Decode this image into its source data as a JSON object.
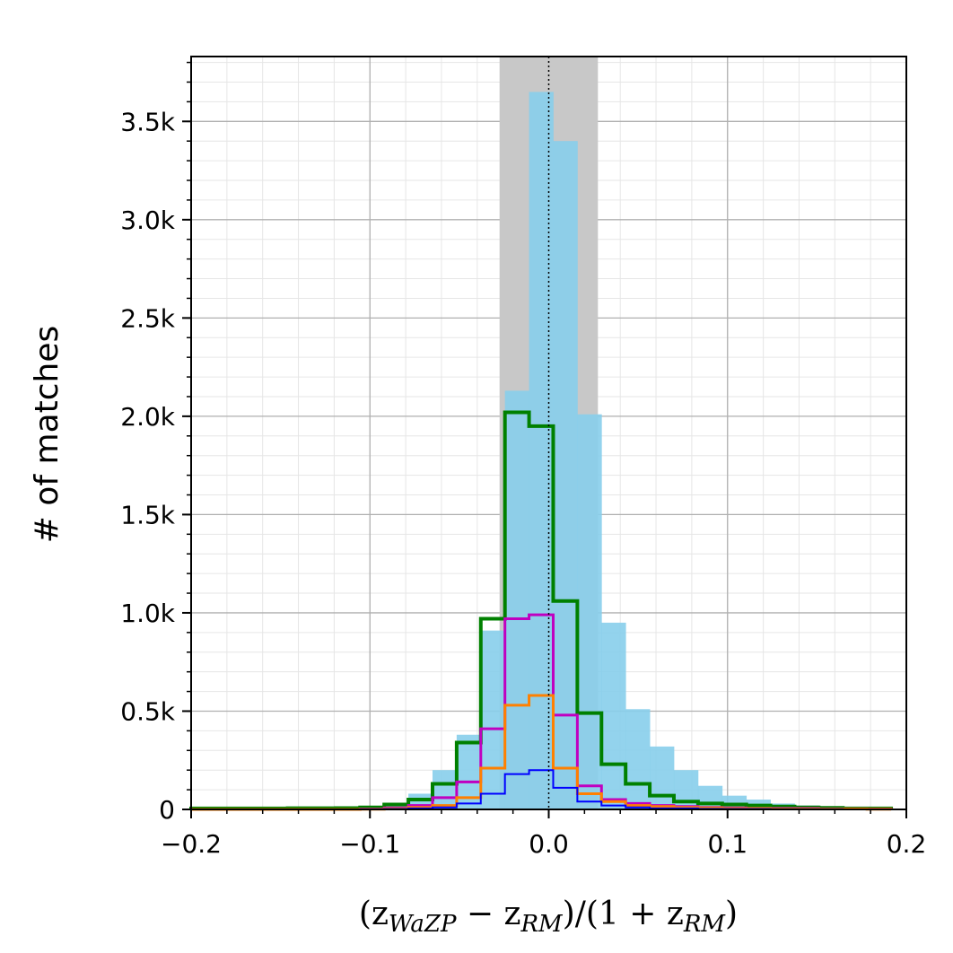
{
  "chart_data": {
    "type": "bar",
    "xlabel": {
      "open": "(z",
      "sub1": "WaZP",
      "mid": " − z",
      "sub2": "RM",
      "mid2": ")/(1 + z",
      "sub3": "RM",
      "close": ")"
    },
    "ylabel": "# of matches",
    "xlim": [
      -0.2,
      0.2
    ],
    "ylim": [
      0,
      3830
    ],
    "x_ticks": [
      -0.2,
      -0.1,
      0.0,
      0.1,
      0.2
    ],
    "x_tick_labels": [
      "−0.2",
      "−0.1",
      "0.0",
      "0.1",
      "0.2"
    ],
    "y_ticks": [
      0,
      500,
      1000,
      1500,
      2000,
      2500,
      3000,
      3500
    ],
    "y_tick_labels": [
      "0",
      "0.5k",
      "1.0k",
      "1.5k",
      "2.0k",
      "2.5k",
      "3.0k",
      "3.5k"
    ],
    "grid": true,
    "shaded_band": {
      "x0": -0.0275,
      "x1": 0.0275,
      "color": "#c8c8c8"
    },
    "reference_line_x": 0.0,
    "bin_edges": [
      -0.2,
      -0.1865,
      -0.173,
      -0.1595,
      -0.146,
      -0.1325,
      -0.119,
      -0.1055,
      -0.092,
      -0.0785,
      -0.065,
      -0.0515,
      -0.038,
      -0.0245,
      -0.011,
      0.0025,
      0.016,
      0.0295,
      0.043,
      0.0565,
      0.07,
      0.0835,
      0.097,
      0.1105,
      0.124,
      0.1375,
      0.151,
      0.1645,
      0.178,
      0.1915
    ],
    "series": [
      {
        "style": "filled",
        "color": "#87CEEB",
        "values": [
          5,
          5,
          5,
          6,
          6,
          7,
          8,
          12,
          30,
          80,
          200,
          380,
          910,
          2130,
          3650,
          3400,
          2010,
          950,
          510,
          320,
          200,
          120,
          70,
          50,
          30,
          20,
          15,
          10,
          5
        ]
      },
      {
        "style": "step",
        "color": "#008000",
        "width": 4,
        "values": [
          5,
          5,
          5,
          5,
          6,
          6,
          7,
          10,
          25,
          50,
          130,
          340,
          970,
          2020,
          1950,
          1060,
          490,
          230,
          130,
          70,
          40,
          30,
          25,
          20,
          15,
          10,
          8,
          5,
          5
        ]
      },
      {
        "style": "step",
        "color": "#c000c0",
        "width": 3,
        "values": [
          0,
          0,
          0,
          0,
          0,
          0,
          0,
          2,
          8,
          20,
          60,
          140,
          410,
          970,
          990,
          480,
          120,
          50,
          30,
          20,
          15,
          10,
          8,
          5,
          5,
          5,
          3,
          3,
          2
        ]
      },
      {
        "style": "step",
        "color": "#ff8000",
        "width": 3,
        "values": [
          0,
          0,
          0,
          0,
          0,
          0,
          0,
          1,
          4,
          10,
          20,
          60,
          210,
          530,
          580,
          210,
          80,
          40,
          20,
          15,
          10,
          8,
          5,
          5,
          3,
          3,
          2,
          2,
          1
        ]
      },
      {
        "style": "step",
        "color": "#0000ff",
        "width": 2,
        "values": [
          0,
          0,
          0,
          0,
          0,
          0,
          0,
          1,
          2,
          5,
          10,
          30,
          80,
          180,
          200,
          110,
          40,
          20,
          10,
          5,
          5,
          3,
          2,
          2,
          1,
          1,
          1,
          0,
          0
        ]
      }
    ]
  }
}
